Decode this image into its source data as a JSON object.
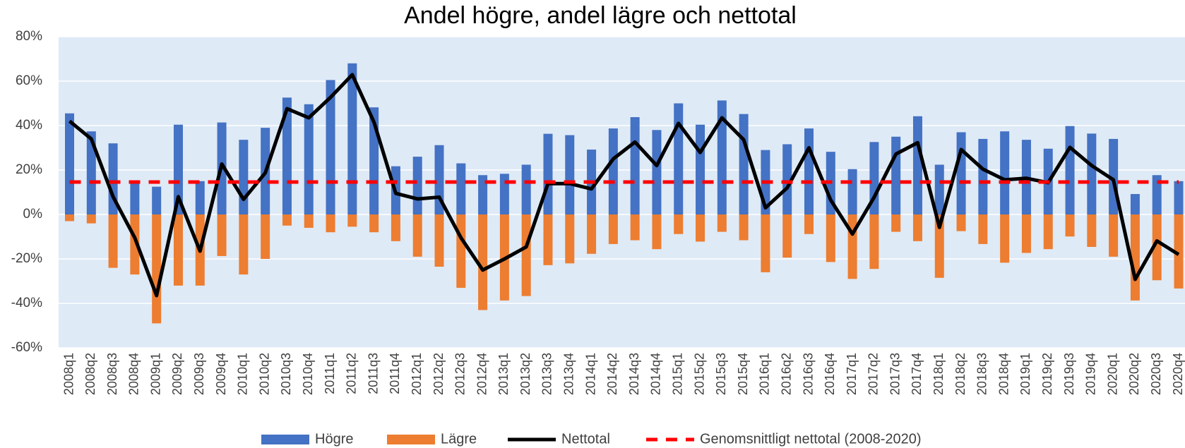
{
  "chart_data": {
    "type": "bar",
    "title": "Andel högre, andel lägre och nettotal",
    "categories": [
      "2008q1",
      "2008q2",
      "2008q3",
      "2008q4",
      "2009q1",
      "2009q2",
      "2009q3",
      "2009q4",
      "2010q1",
      "2010q2",
      "2010q3",
      "2010q4",
      "2011q1",
      "2011q2",
      "2011q3",
      "2011q4",
      "2012q1",
      "2012q2",
      "2012q3",
      "2012q4",
      "2013q1",
      "2013q2",
      "2013q3",
      "2013q4",
      "2014q1",
      "2014q2",
      "2014q3",
      "2014q4",
      "2015q1",
      "2015q2",
      "2015q3",
      "2015q4",
      "2016q1",
      "2016q2",
      "2016q3",
      "2016q4",
      "2017q1",
      "2017q2",
      "2017q3",
      "2017q4",
      "2018q1",
      "2018q2",
      "2018q3",
      "2018q4",
      "2019q1",
      "2019q2",
      "2019q3",
      "2019q4",
      "2020q1",
      "2020q2",
      "2020q3",
      "2020q4"
    ],
    "series": [
      {
        "name": "Högre",
        "type": "bar",
        "color": "#4472c4",
        "values": [
          45.5,
          37.4,
          32,
          15,
          12.5,
          40.4,
          15,
          41.4,
          33.6,
          39,
          52.6,
          49.6,
          60.5,
          68,
          48.2,
          21.7,
          26,
          31.2,
          23,
          17.7,
          18.3,
          22.4,
          36.3,
          35.7,
          29.2,
          38.7,
          43.8,
          38,
          50,
          40.4,
          51.3,
          45.2,
          29,
          31.6,
          38.7,
          28.2,
          20.4,
          32.6,
          35,
          44.2,
          22.4,
          37,
          34,
          37.4,
          33.6,
          29.6,
          39.8,
          36.4,
          34,
          9.2,
          17.7,
          15
        ]
      },
      {
        "name": "Lägre",
        "type": "bar",
        "color": "#ed7d31",
        "values": [
          -3,
          -4,
          -24,
          -27,
          -49,
          -32,
          -32,
          -18.7,
          -27,
          -20,
          -5,
          -6,
          -8,
          -5.5,
          -8,
          -12,
          -19,
          -23.5,
          -33,
          -43,
          -38.7,
          -36.7,
          -22.8,
          -22,
          -17.7,
          -13.3,
          -11.6,
          -15.6,
          -8.8,
          -12.2,
          -7.8,
          -11.6,
          -26,
          -19.4,
          -8.8,
          -21.4,
          -29,
          -24.5,
          -7.8,
          -12,
          -28.5,
          -7.5,
          -13.3,
          -21.7,
          -17.3,
          -15.6,
          -9.9,
          -14.6,
          -19,
          -38.7,
          -29.6,
          -33.3
        ]
      },
      {
        "name": "Nettotal",
        "type": "line",
        "color": "#000000",
        "values": [
          42,
          34,
          8,
          -10.5,
          -36.5,
          8,
          -16.5,
          22.7,
          6.8,
          18.7,
          47.6,
          43.5,
          52.7,
          62.9,
          41.5,
          9.5,
          7,
          7.8,
          -10.5,
          -25,
          -20,
          -14.6,
          13.9,
          13.9,
          11.5,
          25,
          32.6,
          22,
          41,
          27.9,
          43.5,
          33.6,
          3,
          12,
          30,
          6.5,
          -8.8,
          7.8,
          27.2,
          32.3,
          -5.8,
          29.2,
          20.4,
          15.6,
          16.3,
          14.3,
          30.2,
          22,
          15.6,
          -29.2,
          -11.9,
          -18
        ]
      },
      {
        "name": "Genomsnittligt nettotal (2008-2020)",
        "type": "dashed",
        "color": "#ff0000",
        "values": [
          14.6,
          14.6,
          14.6,
          14.6,
          14.6,
          14.6,
          14.6,
          14.6,
          14.6,
          14.6,
          14.6,
          14.6,
          14.6,
          14.6,
          14.6,
          14.6,
          14.6,
          14.6,
          14.6,
          14.6,
          14.6,
          14.6,
          14.6,
          14.6,
          14.6,
          14.6,
          14.6,
          14.6,
          14.6,
          14.6,
          14.6,
          14.6,
          14.6,
          14.6,
          14.6,
          14.6,
          14.6,
          14.6,
          14.6,
          14.6,
          14.6,
          14.6,
          14.6,
          14.6,
          14.6,
          14.6,
          14.6,
          14.6,
          14.6,
          14.6,
          14.6,
          14.6
        ]
      }
    ],
    "ylim": [
      -60,
      80
    ],
    "yticks": [
      {
        "value": -60,
        "label": "-60%"
      },
      {
        "value": -40,
        "label": "-40%"
      },
      {
        "value": -20,
        "label": "-20%"
      },
      {
        "value": 0,
        "label": "0%"
      },
      {
        "value": 20,
        "label": "20%"
      },
      {
        "value": 40,
        "label": "40%"
      },
      {
        "value": 60,
        "label": "60%"
      },
      {
        "value": 80,
        "label": "80%"
      }
    ],
    "grid": true,
    "background": "#deeaf6",
    "legend": "bottom"
  }
}
